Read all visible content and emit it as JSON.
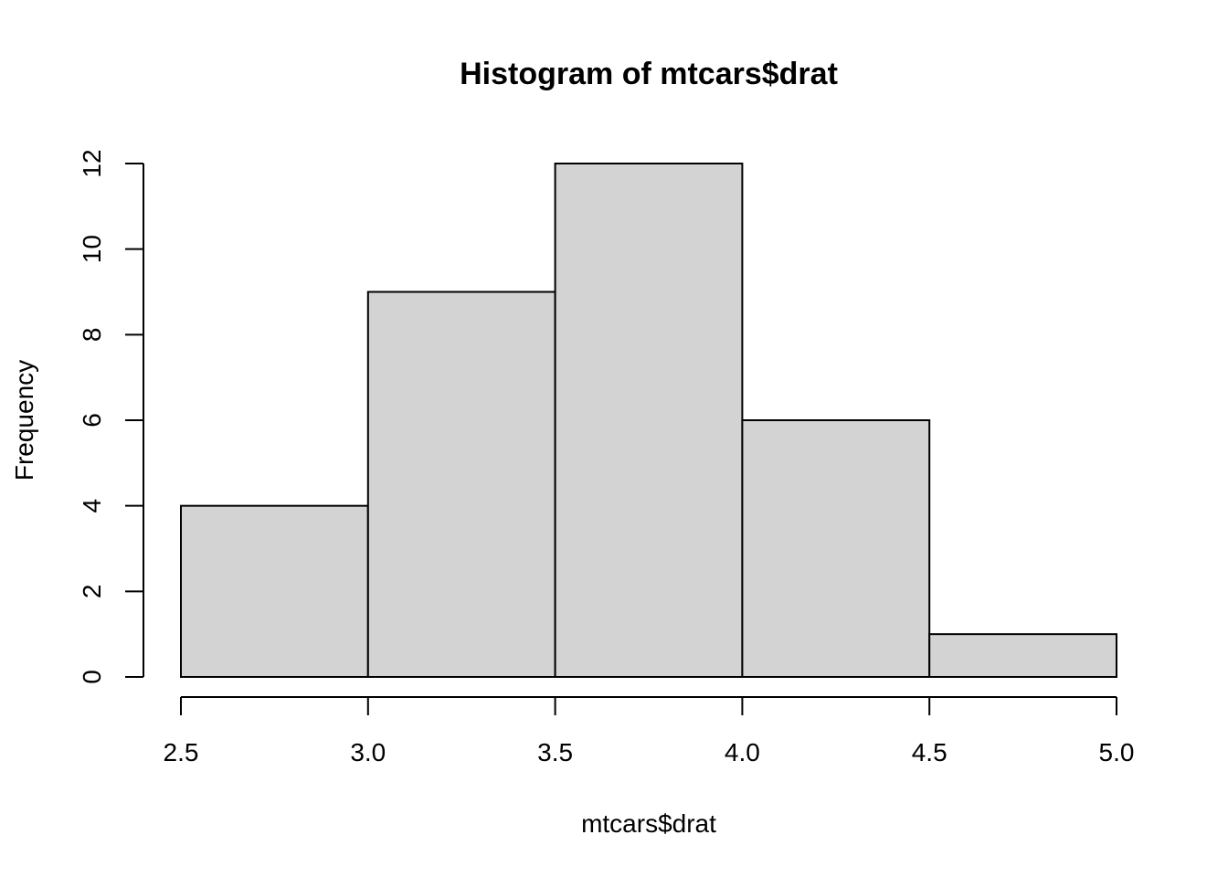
{
  "chart_data": {
    "type": "bar",
    "subtype": "histogram",
    "title": "Histogram of mtcars$drat",
    "xlabel": "mtcars$drat",
    "ylabel": "Frequency",
    "bins": [
      {
        "from": 2.5,
        "to": 3.0,
        "count": 4
      },
      {
        "from": 3.0,
        "to": 3.5,
        "count": 9
      },
      {
        "from": 3.5,
        "to": 4.0,
        "count": 12
      },
      {
        "from": 4.0,
        "to": 4.5,
        "count": 6
      },
      {
        "from": 4.5,
        "to": 5.0,
        "count": 1
      }
    ],
    "xlim": [
      2.5,
      5.0
    ],
    "ylim": [
      0,
      12
    ],
    "x_ticks": [
      2.5,
      3.0,
      3.5,
      4.0,
      4.5,
      5.0
    ],
    "x_tick_labels": [
      "2.5",
      "3.0",
      "3.5",
      "4.0",
      "4.5",
      "5.0"
    ],
    "y_ticks": [
      0,
      2,
      4,
      6,
      8,
      10,
      12
    ],
    "y_tick_labels": [
      "0",
      "2",
      "4",
      "6",
      "8",
      "10",
      "12"
    ],
    "grid": false,
    "colors": {
      "bar_fill": "#d3d3d3",
      "bar_stroke": "#000000",
      "axis": "#000000"
    }
  }
}
